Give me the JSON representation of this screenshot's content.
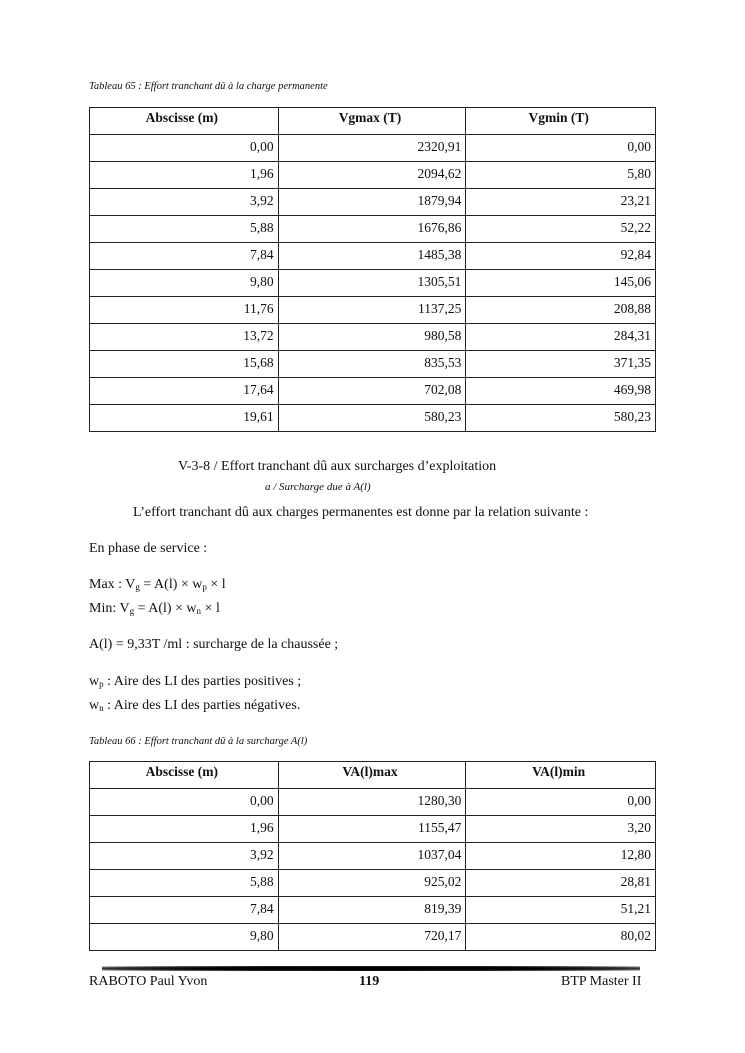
{
  "table65": {
    "caption": "Tableau 65 : Effort tranchant dû à la charge permanente",
    "headers": [
      "Abscisse (m)",
      "Vgmax (T)",
      "Vgmin (T)"
    ],
    "rows": [
      [
        "0,00",
        "2320,91",
        "0,00"
      ],
      [
        "1,96",
        "2094,62",
        "5,80"
      ],
      [
        "3,92",
        "1879,94",
        "23,21"
      ],
      [
        "5,88",
        "1676,86",
        "52,22"
      ],
      [
        "7,84",
        "1485,38",
        "92,84"
      ],
      [
        "9,80",
        "1305,51",
        "145,06"
      ],
      [
        "11,76",
        "1137,25",
        "208,88"
      ],
      [
        "13,72",
        "980,58",
        "284,31"
      ],
      [
        "15,68",
        "835,53",
        "371,35"
      ],
      [
        "17,64",
        "702,08",
        "469,98"
      ],
      [
        "19,61",
        "580,23",
        "580,23"
      ]
    ]
  },
  "section": {
    "heading": "V-3-8 / Effort tranchant dû aux surcharges d’exploitation",
    "subheading": "a / Surcharge due à A(l)",
    "intro": "L’effort tranchant dû aux charges permanentes est donne par la relation suivante :",
    "phase": "En phase de service :",
    "max_formula": {
      "a": "Max : V",
      "s1": "g",
      "b": " = A(l) × w",
      "s2": "p",
      "c": " × l"
    },
    "min_formula": {
      "a": "Min: V",
      "s1": "g",
      "b": " = A(l) × w",
      "s2": "n",
      "c": " × l"
    },
    "al_def": "A(l) = 9,33T /ml : surcharge de la chaussée ;",
    "wp_def": {
      "a": "w",
      "s": "p",
      "b": " : Aire des LI des parties positives ;"
    },
    "wn_def": {
      "a": "w",
      "s": "n",
      "b": " : Aire des LI des parties négatives."
    }
  },
  "table66": {
    "caption": "Tableau 66 : Effort tranchant dû à la surcharge A(l)",
    "headers": [
      "Abscisse (m)",
      "VA(l)max",
      "VA(l)min"
    ],
    "rows": [
      [
        "0,00",
        "1280,30",
        "0,00"
      ],
      [
        "1,96",
        "1155,47",
        "3,20"
      ],
      [
        "3,92",
        "1037,04",
        "12,80"
      ],
      [
        "5,88",
        "925,02",
        "28,81"
      ],
      [
        "7,84",
        "819,39",
        "51,21"
      ],
      [
        "9,80",
        "720,17",
        "80,02"
      ]
    ]
  },
  "footer": {
    "author": "RABOTO Paul Yvon",
    "page": "119",
    "course": "BTP Master II"
  }
}
